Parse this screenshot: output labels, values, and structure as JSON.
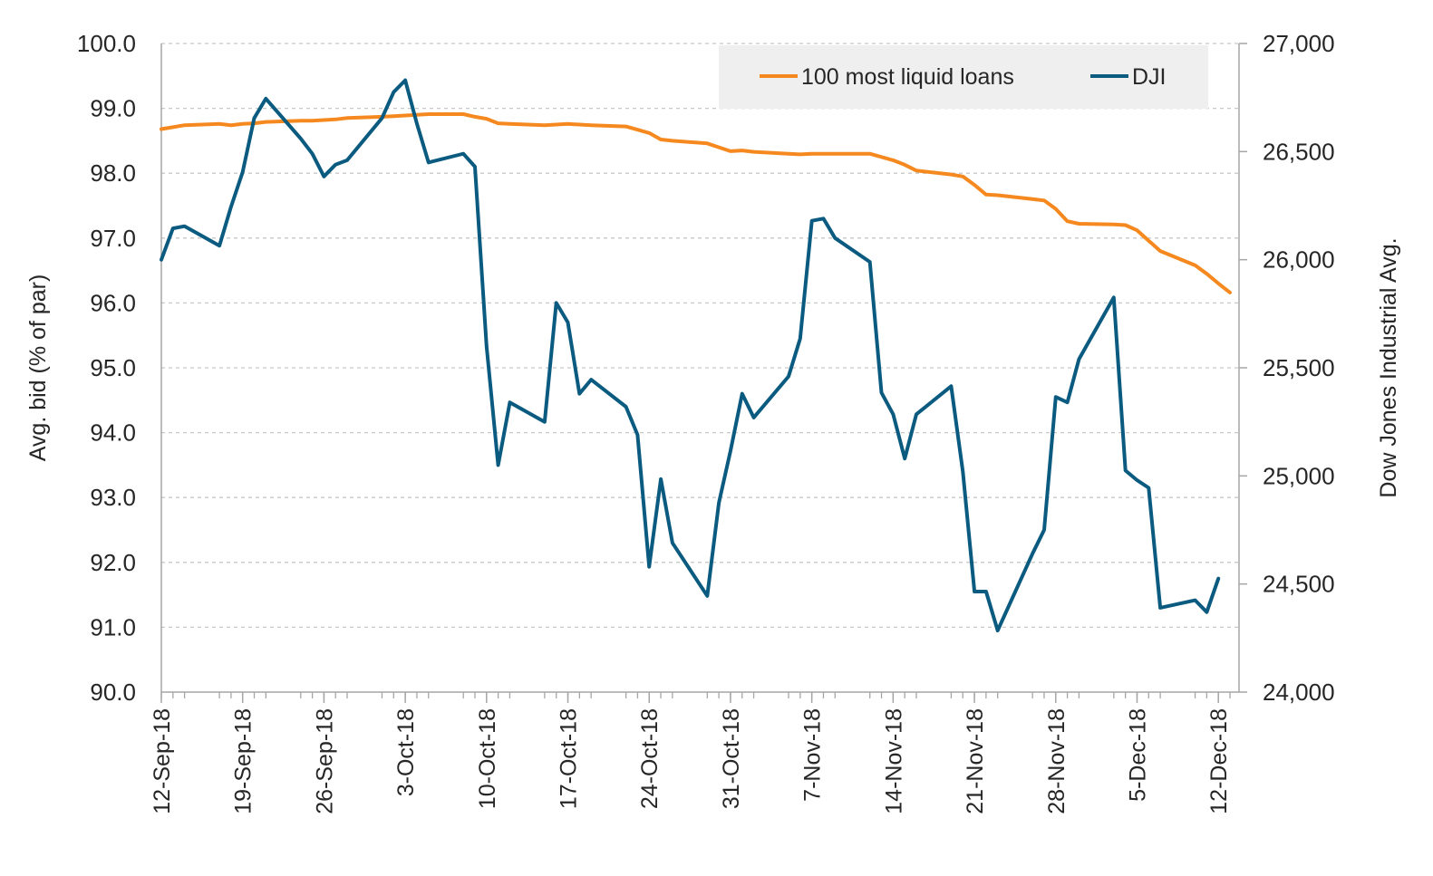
{
  "chart_data": {
    "type": "line",
    "title": "",
    "xlabel": "",
    "ylabel": "Avg. bid (% of par)",
    "y2label": "Dow Jones Industrial Avg.",
    "ylim": [
      90,
      100
    ],
    "y2lim": [
      24000,
      27000
    ],
    "y_ticks": [
      "90.0",
      "91.0",
      "92.0",
      "93.0",
      "94.0",
      "95.0",
      "96.0",
      "97.0",
      "98.0",
      "99.0",
      "100.0"
    ],
    "y2_ticks": [
      "24,000",
      "24,500",
      "25,000",
      "25,500",
      "26,000",
      "26,500",
      "27,000"
    ],
    "x_ticks": [
      "12-Sep-18",
      "19-Sep-18",
      "26-Sep-18",
      "3-Oct-18",
      "10-Oct-18",
      "17-Oct-18",
      "24-Oct-18",
      "31-Oct-18",
      "7-Nov-18",
      "14-Nov-18",
      "21-Nov-18",
      "28-Nov-18",
      "5-Dec-18",
      "12-Dec-18"
    ],
    "x_range": [
      "2018-09-12",
      "2018-12-13"
    ],
    "grid": "horizontal dashed",
    "legend": "top-right",
    "series": [
      {
        "name": "100 most liquid loans",
        "axis": "left",
        "color": "#F5891F",
        "points": [
          [
            "2018-09-12",
            98.68
          ],
          [
            "2018-09-13",
            98.71
          ],
          [
            "2018-09-14",
            98.74
          ],
          [
            "2018-09-17",
            98.76
          ],
          [
            "2018-09-18",
            98.74
          ],
          [
            "2018-09-19",
            98.76
          ],
          [
            "2018-09-20",
            98.77
          ],
          [
            "2018-09-21",
            98.79
          ],
          [
            "2018-09-24",
            98.81
          ],
          [
            "2018-09-25",
            98.81
          ],
          [
            "2018-09-26",
            98.82
          ],
          [
            "2018-09-27",
            98.83
          ],
          [
            "2018-09-28",
            98.85
          ],
          [
            "2018-10-01",
            98.87
          ],
          [
            "2018-10-02",
            98.88
          ],
          [
            "2018-10-03",
            98.89
          ],
          [
            "2018-10-04",
            98.9
          ],
          [
            "2018-10-05",
            98.91
          ],
          [
            "2018-10-08",
            98.91
          ],
          [
            "2018-10-09",
            98.87
          ],
          [
            "2018-10-10",
            98.84
          ],
          [
            "2018-10-11",
            98.77
          ],
          [
            "2018-10-12",
            98.76
          ],
          [
            "2018-10-15",
            98.74
          ],
          [
            "2018-10-16",
            98.75
          ],
          [
            "2018-10-17",
            98.76
          ],
          [
            "2018-10-18",
            98.75
          ],
          [
            "2018-10-19",
            98.74
          ],
          [
            "2018-10-22",
            98.72
          ],
          [
            "2018-10-23",
            98.67
          ],
          [
            "2018-10-24",
            98.62
          ],
          [
            "2018-10-25",
            98.52
          ],
          [
            "2018-10-26",
            98.5
          ],
          [
            "2018-10-29",
            98.46
          ],
          [
            "2018-10-30",
            98.4
          ],
          [
            "2018-10-31",
            98.34
          ],
          [
            "2018-11-01",
            98.35
          ],
          [
            "2018-11-02",
            98.33
          ],
          [
            "2018-11-05",
            98.3
          ],
          [
            "2018-11-06",
            98.29
          ],
          [
            "2018-11-07",
            98.3
          ],
          [
            "2018-11-08",
            98.3
          ],
          [
            "2018-11-09",
            98.3
          ],
          [
            "2018-11-12",
            98.3
          ],
          [
            "2018-11-13",
            98.25
          ],
          [
            "2018-11-14",
            98.2
          ],
          [
            "2018-11-15",
            98.13
          ],
          [
            "2018-11-16",
            98.04
          ],
          [
            "2018-11-19",
            97.98
          ],
          [
            "2018-11-20",
            97.95
          ],
          [
            "2018-11-21",
            97.82
          ],
          [
            "2018-11-22",
            97.67
          ],
          [
            "2018-11-23",
            97.66
          ],
          [
            "2018-11-26",
            97.6
          ],
          [
            "2018-11-27",
            97.58
          ],
          [
            "2018-11-28",
            97.45
          ],
          [
            "2018-11-29",
            97.26
          ],
          [
            "2018-11-30",
            97.22
          ],
          [
            "2018-12-03",
            97.21
          ],
          [
            "2018-12-04",
            97.2
          ],
          [
            "2018-12-05",
            97.12
          ],
          [
            "2018-12-06",
            96.96
          ],
          [
            "2018-12-07",
            96.8
          ],
          [
            "2018-12-10",
            96.58
          ],
          [
            "2018-12-11",
            96.45
          ],
          [
            "2018-12-12",
            96.3
          ],
          [
            "2018-12-13",
            96.16
          ]
        ]
      },
      {
        "name": "DJI",
        "axis": "right",
        "color": "#0B5B81",
        "points": [
          [
            "2018-09-12",
            26000
          ],
          [
            "2018-09-13",
            26145
          ],
          [
            "2018-09-14",
            26155
          ],
          [
            "2018-09-17",
            26065
          ],
          [
            "2018-09-18",
            26245
          ],
          [
            "2018-09-19",
            26405
          ],
          [
            "2018-09-20",
            26655
          ],
          [
            "2018-09-21",
            26745
          ],
          [
            "2018-09-24",
            26560
          ],
          [
            "2018-09-25",
            26490
          ],
          [
            "2018-09-26",
            26385
          ],
          [
            "2018-09-27",
            26440
          ],
          [
            "2018-09-28",
            26460
          ],
          [
            "2018-10-01",
            26655
          ],
          [
            "2018-10-02",
            26775
          ],
          [
            "2018-10-03",
            26830
          ],
          [
            "2018-10-04",
            26630
          ],
          [
            "2018-10-05",
            26450
          ],
          [
            "2018-10-08",
            26490
          ],
          [
            "2018-10-09",
            26430
          ],
          [
            "2018-10-10",
            25600
          ],
          [
            "2018-10-11",
            25050
          ],
          [
            "2018-10-12",
            25340
          ],
          [
            "2018-10-15",
            25250
          ],
          [
            "2018-10-16",
            25800
          ],
          [
            "2018-10-17",
            25710
          ],
          [
            "2018-10-18",
            25380
          ],
          [
            "2018-10-19",
            25445
          ],
          [
            "2018-10-22",
            25320
          ],
          [
            "2018-10-23",
            25190
          ],
          [
            "2018-10-24",
            24580
          ],
          [
            "2018-10-25",
            24985
          ],
          [
            "2018-10-26",
            24690
          ],
          [
            "2018-10-29",
            24445
          ],
          [
            "2018-10-30",
            24875
          ],
          [
            "2018-10-31",
            25115
          ],
          [
            "2018-11-01",
            25380
          ],
          [
            "2018-11-02",
            25270
          ],
          [
            "2018-11-05",
            25460
          ],
          [
            "2018-11-06",
            25635
          ],
          [
            "2018-11-07",
            26180
          ],
          [
            "2018-11-08",
            26190
          ],
          [
            "2018-11-09",
            26100
          ],
          [
            "2018-11-12",
            25990
          ],
          [
            "2018-11-13",
            25385
          ],
          [
            "2018-11-14",
            25285
          ],
          [
            "2018-11-15",
            25080
          ],
          [
            "2018-11-16",
            25285
          ],
          [
            "2018-11-19",
            25415
          ],
          [
            "2018-11-20",
            25020
          ],
          [
            "2018-11-21",
            24465
          ],
          [
            "2018-11-22",
            24465
          ],
          [
            "2018-11-23",
            24285
          ],
          [
            "2018-11-26",
            24640
          ],
          [
            "2018-11-27",
            24750
          ],
          [
            "2018-11-28",
            25365
          ],
          [
            "2018-11-29",
            25340
          ],
          [
            "2018-11-30",
            25540
          ],
          [
            "2018-12-03",
            25825
          ],
          [
            "2018-12-04",
            25025
          ],
          [
            "2018-12-05",
            24980
          ],
          [
            "2018-12-06",
            24945
          ],
          [
            "2018-12-07",
            24390
          ],
          [
            "2018-12-10",
            24425
          ],
          [
            "2018-12-11",
            24370
          ],
          [
            "2018-12-12",
            24525
          ]
        ]
      }
    ]
  }
}
